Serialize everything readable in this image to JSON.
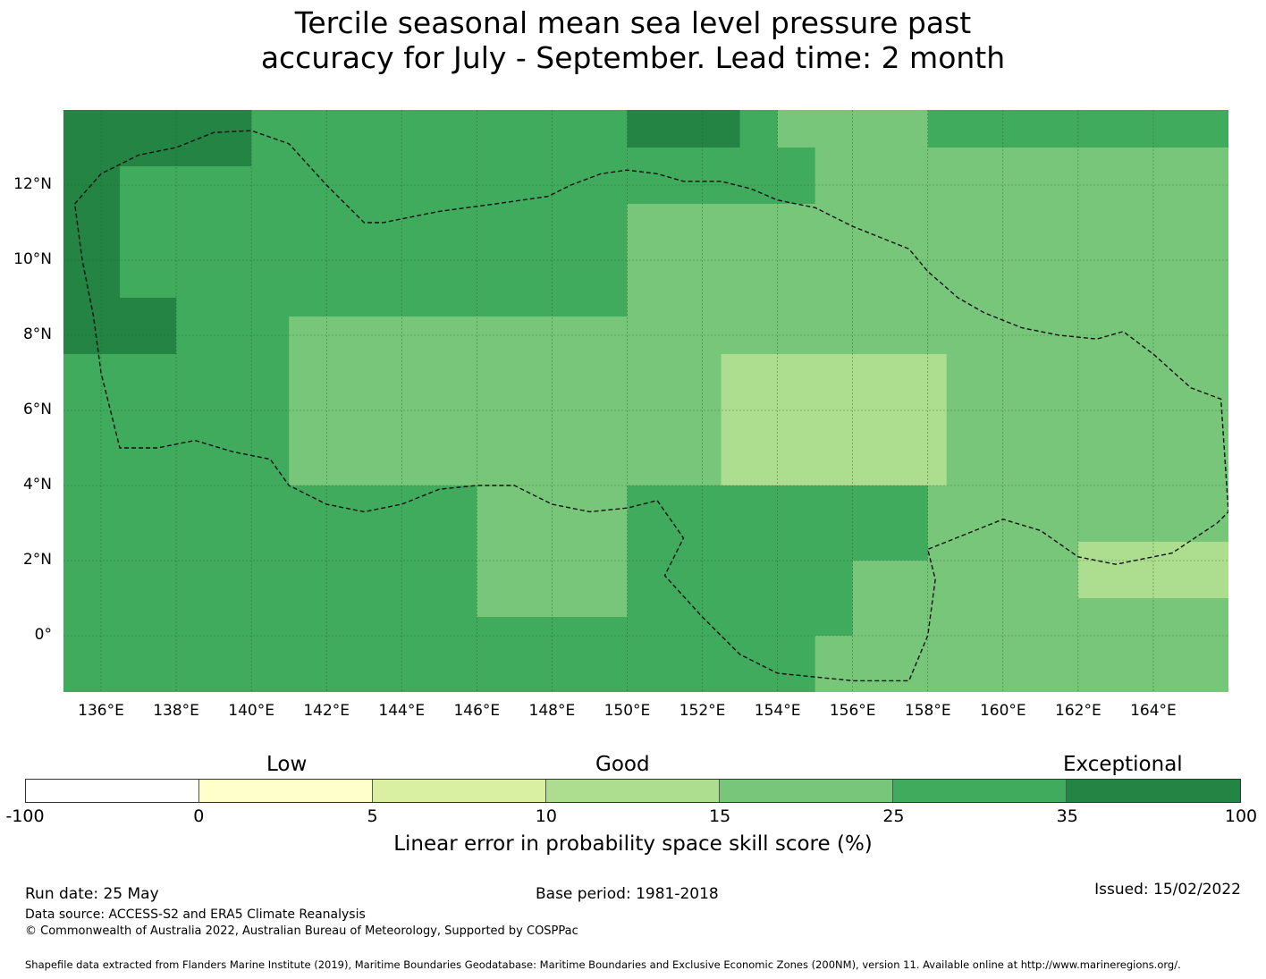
{
  "title_line1": "Tercile seasonal mean sea level pressure past",
  "title_line2": "accuracy for July - September. Lead time: 2 month",
  "map": {
    "lon_range": [
      135.0,
      166.0
    ],
    "lat_range": [
      -1.5,
      14.0
    ],
    "lon_ticks": [
      {
        "value": 136,
        "label": "136°E"
      },
      {
        "value": 138,
        "label": "138°E"
      },
      {
        "value": 140,
        "label": "140°E"
      },
      {
        "value": 142,
        "label": "142°E"
      },
      {
        "value": 144,
        "label": "144°E"
      },
      {
        "value": 146,
        "label": "146°E"
      },
      {
        "value": 148,
        "label": "148°E"
      },
      {
        "value": 150,
        "label": "150°E"
      },
      {
        "value": 152,
        "label": "152°E"
      },
      {
        "value": 154,
        "label": "154°E"
      },
      {
        "value": 156,
        "label": "156°E"
      },
      {
        "value": 158,
        "label": "158°E"
      },
      {
        "value": 160,
        "label": "160°E"
      },
      {
        "value": 162,
        "label": "162°E"
      },
      {
        "value": 164,
        "label": "164°E"
      }
    ],
    "lat_ticks": [
      {
        "value": 12,
        "label": "12°N"
      },
      {
        "value": 10,
        "label": "10°N"
      },
      {
        "value": 8,
        "label": "8°N"
      },
      {
        "value": 6,
        "label": "6°N"
      },
      {
        "value": 4,
        "label": "4°N"
      },
      {
        "value": 2,
        "label": "2°N"
      },
      {
        "value": 0,
        "label": "0°"
      }
    ],
    "skill_regions": [
      {
        "name": "very-high-nw",
        "class": 6,
        "lon": [
          135.0,
          140.0
        ],
        "lat": [
          12.5,
          14.0
        ]
      },
      {
        "name": "very-high-west",
        "class": 6,
        "lon": [
          135.0,
          136.5
        ],
        "lat": [
          9.0,
          12.5
        ]
      },
      {
        "name": "very-high-west-band",
        "class": 6,
        "lon": [
          135.0,
          138.0
        ],
        "lat": [
          7.5,
          9.0
        ]
      },
      {
        "name": "very-high-north",
        "class": 6,
        "lon": [
          150.0,
          153.0
        ],
        "lat": [
          13.0,
          14.0
        ]
      },
      {
        "name": "medium-north",
        "class": 4,
        "lon": [
          154.0,
          158.0
        ],
        "lat": [
          13.0,
          14.0
        ]
      },
      {
        "name": "medium-ne",
        "class": 4,
        "lon": [
          155.0,
          166.0
        ],
        "lat": [
          10.5,
          13.0
        ]
      },
      {
        "name": "medium-central",
        "class": 4,
        "lon": [
          150.0,
          158.0
        ],
        "lat": [
          4.0,
          11.5
        ]
      },
      {
        "name": "medium-east",
        "class": 4,
        "lon": [
          158.0,
          166.0
        ],
        "lat": [
          2.0,
          10.5
        ]
      },
      {
        "name": "medium-south-central",
        "class": 4,
        "lon": [
          146.0,
          150.0
        ],
        "lat": [
          0.5,
          4.0
        ]
      },
      {
        "name": "medium-southeast",
        "class": 4,
        "lon": [
          155.0,
          166.0
        ],
        "lat": [
          -1.5,
          2.0
        ]
      },
      {
        "name": "medium-west-band",
        "class": 4,
        "lon": [
          141.0,
          150.0
        ],
        "lat": [
          4.0,
          8.5
        ]
      },
      {
        "name": "low-good-center",
        "class": 3,
        "lon": [
          152.5,
          158.5
        ],
        "lat": [
          4.0,
          7.5
        ]
      },
      {
        "name": "low-good-east",
        "class": 3,
        "lon": [
          162.0,
          166.0
        ],
        "lat": [
          1.0,
          2.5
        ]
      },
      {
        "name": "high-south",
        "class": 5,
        "lon": [
          151.5,
          156.0
        ],
        "lat": [
          0.0,
          2.0
        ]
      }
    ],
    "eez_boundary": [
      [
        135.3,
        11.5
      ],
      [
        136.0,
        12.3
      ],
      [
        137.0,
        12.8
      ],
      [
        138.0,
        13.0
      ],
      [
        139.0,
        13.4
      ],
      [
        140.0,
        13.45
      ],
      [
        141.0,
        13.1
      ],
      [
        142.0,
        12.0
      ],
      [
        143.0,
        11.0
      ],
      [
        143.5,
        11.0
      ],
      [
        145.0,
        11.3
      ],
      [
        146.5,
        11.5
      ],
      [
        147.9,
        11.7
      ],
      [
        148.5,
        12.0
      ],
      [
        149.3,
        12.3
      ],
      [
        150.0,
        12.4
      ],
      [
        150.8,
        12.3
      ],
      [
        151.5,
        12.1
      ],
      [
        152.5,
        12.1
      ],
      [
        153.3,
        11.9
      ],
      [
        154.0,
        11.6
      ],
      [
        155.0,
        11.4
      ],
      [
        156.0,
        10.9
      ],
      [
        157.0,
        10.5
      ],
      [
        157.5,
        10.3
      ],
      [
        158.0,
        9.7
      ],
      [
        158.8,
        9.0
      ],
      [
        159.5,
        8.6
      ],
      [
        160.5,
        8.2
      ],
      [
        161.5,
        8.0
      ],
      [
        162.5,
        7.9
      ],
      [
        163.2,
        8.1
      ],
      [
        164.0,
        7.5
      ],
      [
        165.0,
        6.6
      ],
      [
        165.8,
        6.3
      ],
      [
        166.0,
        3.3
      ],
      [
        165.7,
        3.0
      ],
      [
        164.5,
        2.2
      ],
      [
        163.0,
        1.9
      ],
      [
        162.0,
        2.1
      ],
      [
        161.0,
        2.8
      ],
      [
        160.0,
        3.1
      ],
      [
        159.0,
        2.7
      ],
      [
        158.5,
        2.5
      ],
      [
        158.0,
        2.3
      ],
      [
        158.2,
        1.5
      ],
      [
        158.0,
        0.0
      ],
      [
        157.5,
        -1.2
      ],
      [
        156.0,
        -1.2
      ],
      [
        154.0,
        -1.0
      ],
      [
        153.0,
        -0.5
      ],
      [
        152.0,
        0.5
      ],
      [
        151.0,
        1.6
      ],
      [
        151.5,
        2.6
      ],
      [
        150.8,
        3.6
      ],
      [
        150.0,
        3.4
      ],
      [
        149.0,
        3.3
      ],
      [
        148.0,
        3.5
      ],
      [
        147.0,
        4.0
      ],
      [
        146.0,
        4.0
      ],
      [
        145.0,
        3.9
      ],
      [
        144.0,
        3.5
      ],
      [
        143.0,
        3.3
      ],
      [
        142.0,
        3.5
      ],
      [
        141.0,
        4.0
      ],
      [
        140.5,
        4.7
      ],
      [
        139.5,
        4.9
      ],
      [
        138.5,
        5.2
      ],
      [
        137.5,
        5.0
      ],
      [
        136.5,
        5.0
      ],
      [
        136.0,
        7.0
      ],
      [
        135.8,
        8.5
      ],
      [
        135.5,
        10.0
      ],
      [
        135.3,
        11.5
      ]
    ]
  },
  "colorbar": {
    "ticks": [
      "-100",
      "0",
      "5",
      "10",
      "15",
      "25",
      "35",
      "100"
    ],
    "colors": [
      "#ffffff",
      "#ffffcc",
      "#d9f0a3",
      "#addd8e",
      "#78c679",
      "#41ab5d",
      "#238443"
    ],
    "categories": [
      "Low",
      "Good",
      "Exceptional"
    ],
    "label": "Linear error in probability space skill score (%)"
  },
  "footer": {
    "run_date": "Run date: 25 May",
    "base_period": "Base period: 1981-2018",
    "issued": "Issued: 15/02/2022",
    "data_source": "Data source: ACCESS-S2 and ERA5 Climate Reanalysis",
    "copyright": "© Commonwealth of Australia 2022, Australian Bureau of Meteorology, Supported by COSPPac",
    "shapefile": "Shapefile data extracted from Flanders Marine Institute (2019), Maritime Boundaries Geodatabase: Maritime Boundaries and Exclusive Economic Zones (200NM), version 11. Available online at http://www.marineregions.org/."
  }
}
